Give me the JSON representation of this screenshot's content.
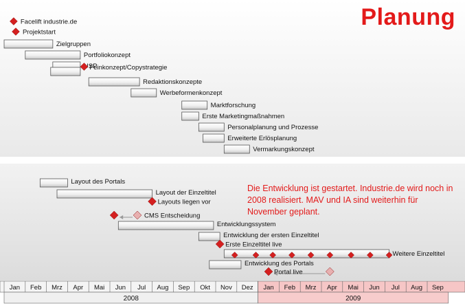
{
  "title": "Planung",
  "note": "Die Entwicklung ist gestartet. Industrie.de wird noch in 2008 realisiert. MAV und IA sind weiterhin für November geplant.",
  "colors": {
    "milestone": "#d42020",
    "milestone_faded": "#e8b0b0",
    "year2008": "#f0f0f0",
    "year2009": "#f6c6c6",
    "title": "#e31a1a"
  },
  "timeline": {
    "months": [
      "Jan",
      "Feb",
      "Mrz",
      "Apr",
      "Mai",
      "Jun",
      "Jul",
      "Aug",
      "Sep",
      "Okt",
      "Nov",
      "Dez",
      "Jan",
      "Feb",
      "Mrz",
      "Apr",
      "Mai",
      "Jun",
      "Jul",
      "Aug",
      "Sep"
    ],
    "years": [
      {
        "label": "2008",
        "start": 0,
        "end": 12
      },
      {
        "label": "2009",
        "start": 12,
        "end": 21
      }
    ]
  },
  "top_milestones": [
    {
      "label": "Facelift industrie.de",
      "month": 0.45
    },
    {
      "label": "Projektstart",
      "month": 0.55
    }
  ],
  "top_tasks": [
    {
      "label": "Zielgruppen",
      "start": 0.0,
      "end": 2.3
    },
    {
      "label": "Portfoliokonzept",
      "start": 1.0,
      "end": 3.6
    },
    {
      "label": "USP",
      "start": 2.3,
      "end": 3.6
    },
    {
      "label": "Feinkonzept/Copystrategie",
      "start": 2.2,
      "end": 3.6,
      "milestone": 3.65
    },
    {
      "label": "Redaktionskonzepte",
      "start": 4.0,
      "end": 6.4
    },
    {
      "label": "Werbeformenkonzept",
      "start": 6.0,
      "end": 7.2
    },
    {
      "label": "Marktforschung",
      "start": 8.4,
      "end": 9.6
    },
    {
      "label": "Erste Marketingmaßnahmen",
      "start": 8.4,
      "end": 9.2
    },
    {
      "label": "Personalplanung und Prozesse",
      "start": 9.2,
      "end": 10.4
    },
    {
      "label": "Erweiterte Erlösplanung",
      "start": 9.4,
      "end": 10.4
    },
    {
      "label": "Vermarkungskonzept",
      "start": 10.4,
      "end": 11.6
    }
  ],
  "bottom_tasks": [
    {
      "label": "Layout des Portals",
      "start": 1.7,
      "end": 3.0
    },
    {
      "label": "Layout der Einzeltitel",
      "start": 2.5,
      "end": 7.0
    },
    {
      "label": "Entwicklungssystem",
      "start": 5.4,
      "end": 9.9
    },
    {
      "label": "Entwicklung der ersten Einzeltitel",
      "start": 9.2,
      "end": 10.2
    },
    {
      "label": "Weitere Einzeltitel",
      "start": 10.4,
      "end": 18.2
    },
    {
      "label": "Entwicklung des Portals",
      "start": 9.7,
      "end": 11.2
    }
  ],
  "bottom_milestones": [
    {
      "label": "Layouts liegen vor",
      "month": 7.0
    },
    {
      "label": "CMS Entscheidung",
      "month": 5.2,
      "faded_month": 6.3
    },
    {
      "label": "Erste Einzeltitel live",
      "month": 10.2
    },
    {
      "label": "Portal live",
      "month": 12.5,
      "faded_month": 15.4
    }
  ],
  "weitere_markers": [
    10.9,
    11.9,
    12.7,
    13.6,
    14.5,
    15.4,
    16.4,
    17.3,
    18.2
  ]
}
